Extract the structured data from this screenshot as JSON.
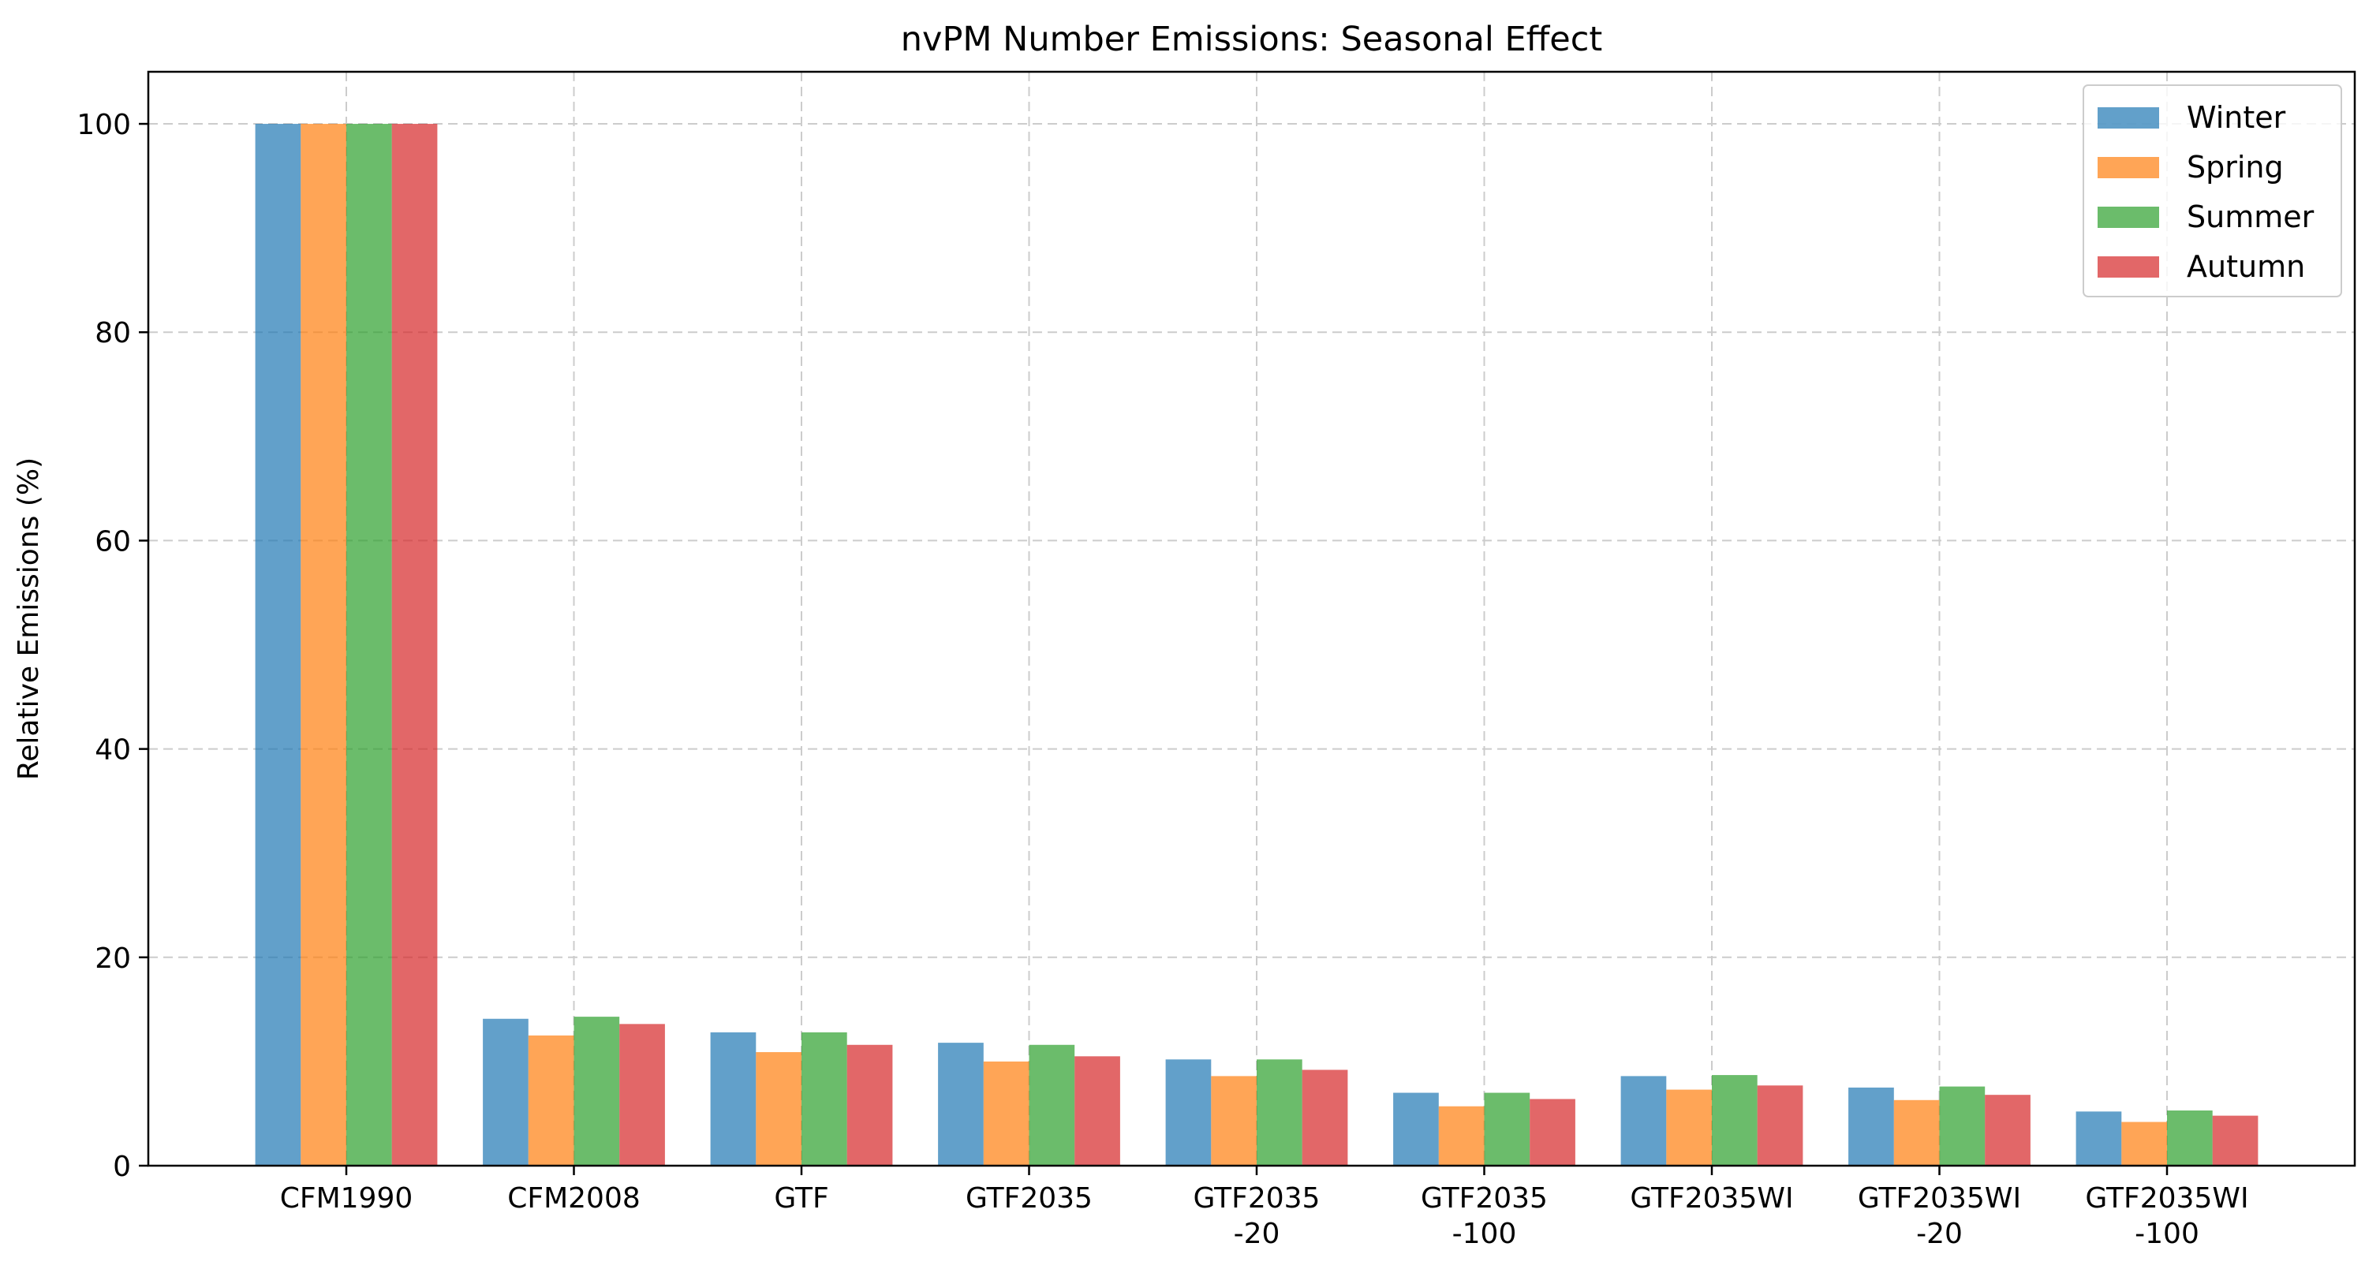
{
  "chart_data": {
    "type": "bar",
    "title": "nvPM Number Emissions: Seasonal Effect",
    "xlabel": "",
    "ylabel": "Relative Emissions (%)",
    "ylim": [
      0,
      105
    ],
    "yticks": [
      "0",
      "20",
      "40",
      "60",
      "80",
      "100"
    ],
    "grid": true,
    "legend_position": "top-right",
    "categories": [
      "CFM1990",
      "CFM2008",
      "GTF",
      "GTF2035",
      "GTF2035\n-20",
      "GTF2035\n-100",
      "GTF2035WI",
      "GTF2035WI\n-20",
      "GTF2035WI\n-100"
    ],
    "series": [
      {
        "name": "Winter",
        "color": "#1f77b4",
        "values": [
          100,
          14.1,
          12.8,
          11.8,
          10.2,
          7.0,
          8.6,
          7.5,
          5.2
        ]
      },
      {
        "name": "Spring",
        "color": "#ff7f0e",
        "values": [
          100,
          12.5,
          10.9,
          10.0,
          8.6,
          5.7,
          7.3,
          6.3,
          4.2
        ]
      },
      {
        "name": "Summer",
        "color": "#2ca02c",
        "values": [
          100,
          14.3,
          12.8,
          11.6,
          10.2,
          7.0,
          8.7,
          7.6,
          5.3
        ]
      },
      {
        "name": "Autumn",
        "color": "#d62728",
        "values": [
          100,
          13.6,
          11.6,
          10.5,
          9.2,
          6.4,
          7.7,
          6.8,
          4.8
        ]
      }
    ]
  }
}
